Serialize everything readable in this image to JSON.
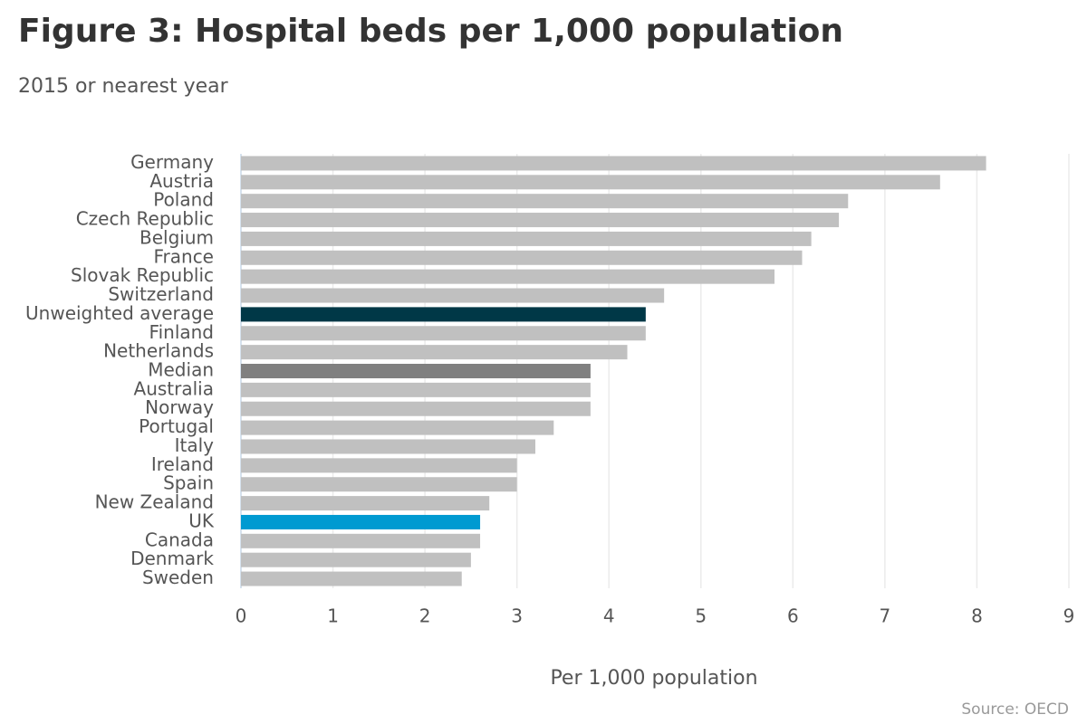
{
  "chart_data": {
    "type": "barh",
    "title": "Figure 3: Hospital beds per 1,000 population",
    "subtitle": "2015 or nearest year",
    "x_label": "Per 1,000 population",
    "source": "Source: OECD",
    "categories": [
      "Germany",
      "Austria",
      "Poland",
      "Czech Republic",
      "Belgium",
      "France",
      "Slovak Republic",
      "Switzerland",
      "Unweighted average",
      "Finland",
      "Netherlands",
      "Median",
      "Australia",
      "Norway",
      "Portugal",
      "Italy",
      "Ireland",
      "Spain",
      "New Zealand",
      "UK",
      "Canada",
      "Denmark",
      "Sweden"
    ],
    "values": [
      8.1,
      7.6,
      6.6,
      6.5,
      6.2,
      6.1,
      5.8,
      4.6,
      4.4,
      4.4,
      4.2,
      3.8,
      3.8,
      3.8,
      3.4,
      3.2,
      3.0,
      3.0,
      2.7,
      2.6,
      2.6,
      2.5,
      2.4
    ],
    "colors": [
      "#c0c0c0",
      "#c0c0c0",
      "#c0c0c0",
      "#c0c0c0",
      "#c0c0c0",
      "#c0c0c0",
      "#c0c0c0",
      "#c0c0c0",
      "#003847",
      "#c0c0c0",
      "#c0c0c0",
      "#808080",
      "#c0c0c0",
      "#c0c0c0",
      "#c0c0c0",
      "#c0c0c0",
      "#c0c0c0",
      "#c0c0c0",
      "#c0c0c0",
      "#009ad1",
      "#c0c0c0",
      "#c0c0c0",
      "#c0c0c0"
    ],
    "xlim": [
      0,
      9
    ],
    "xticks": [
      0,
      1,
      2,
      3,
      4,
      5,
      6,
      7,
      8,
      9
    ],
    "grid": true
  }
}
